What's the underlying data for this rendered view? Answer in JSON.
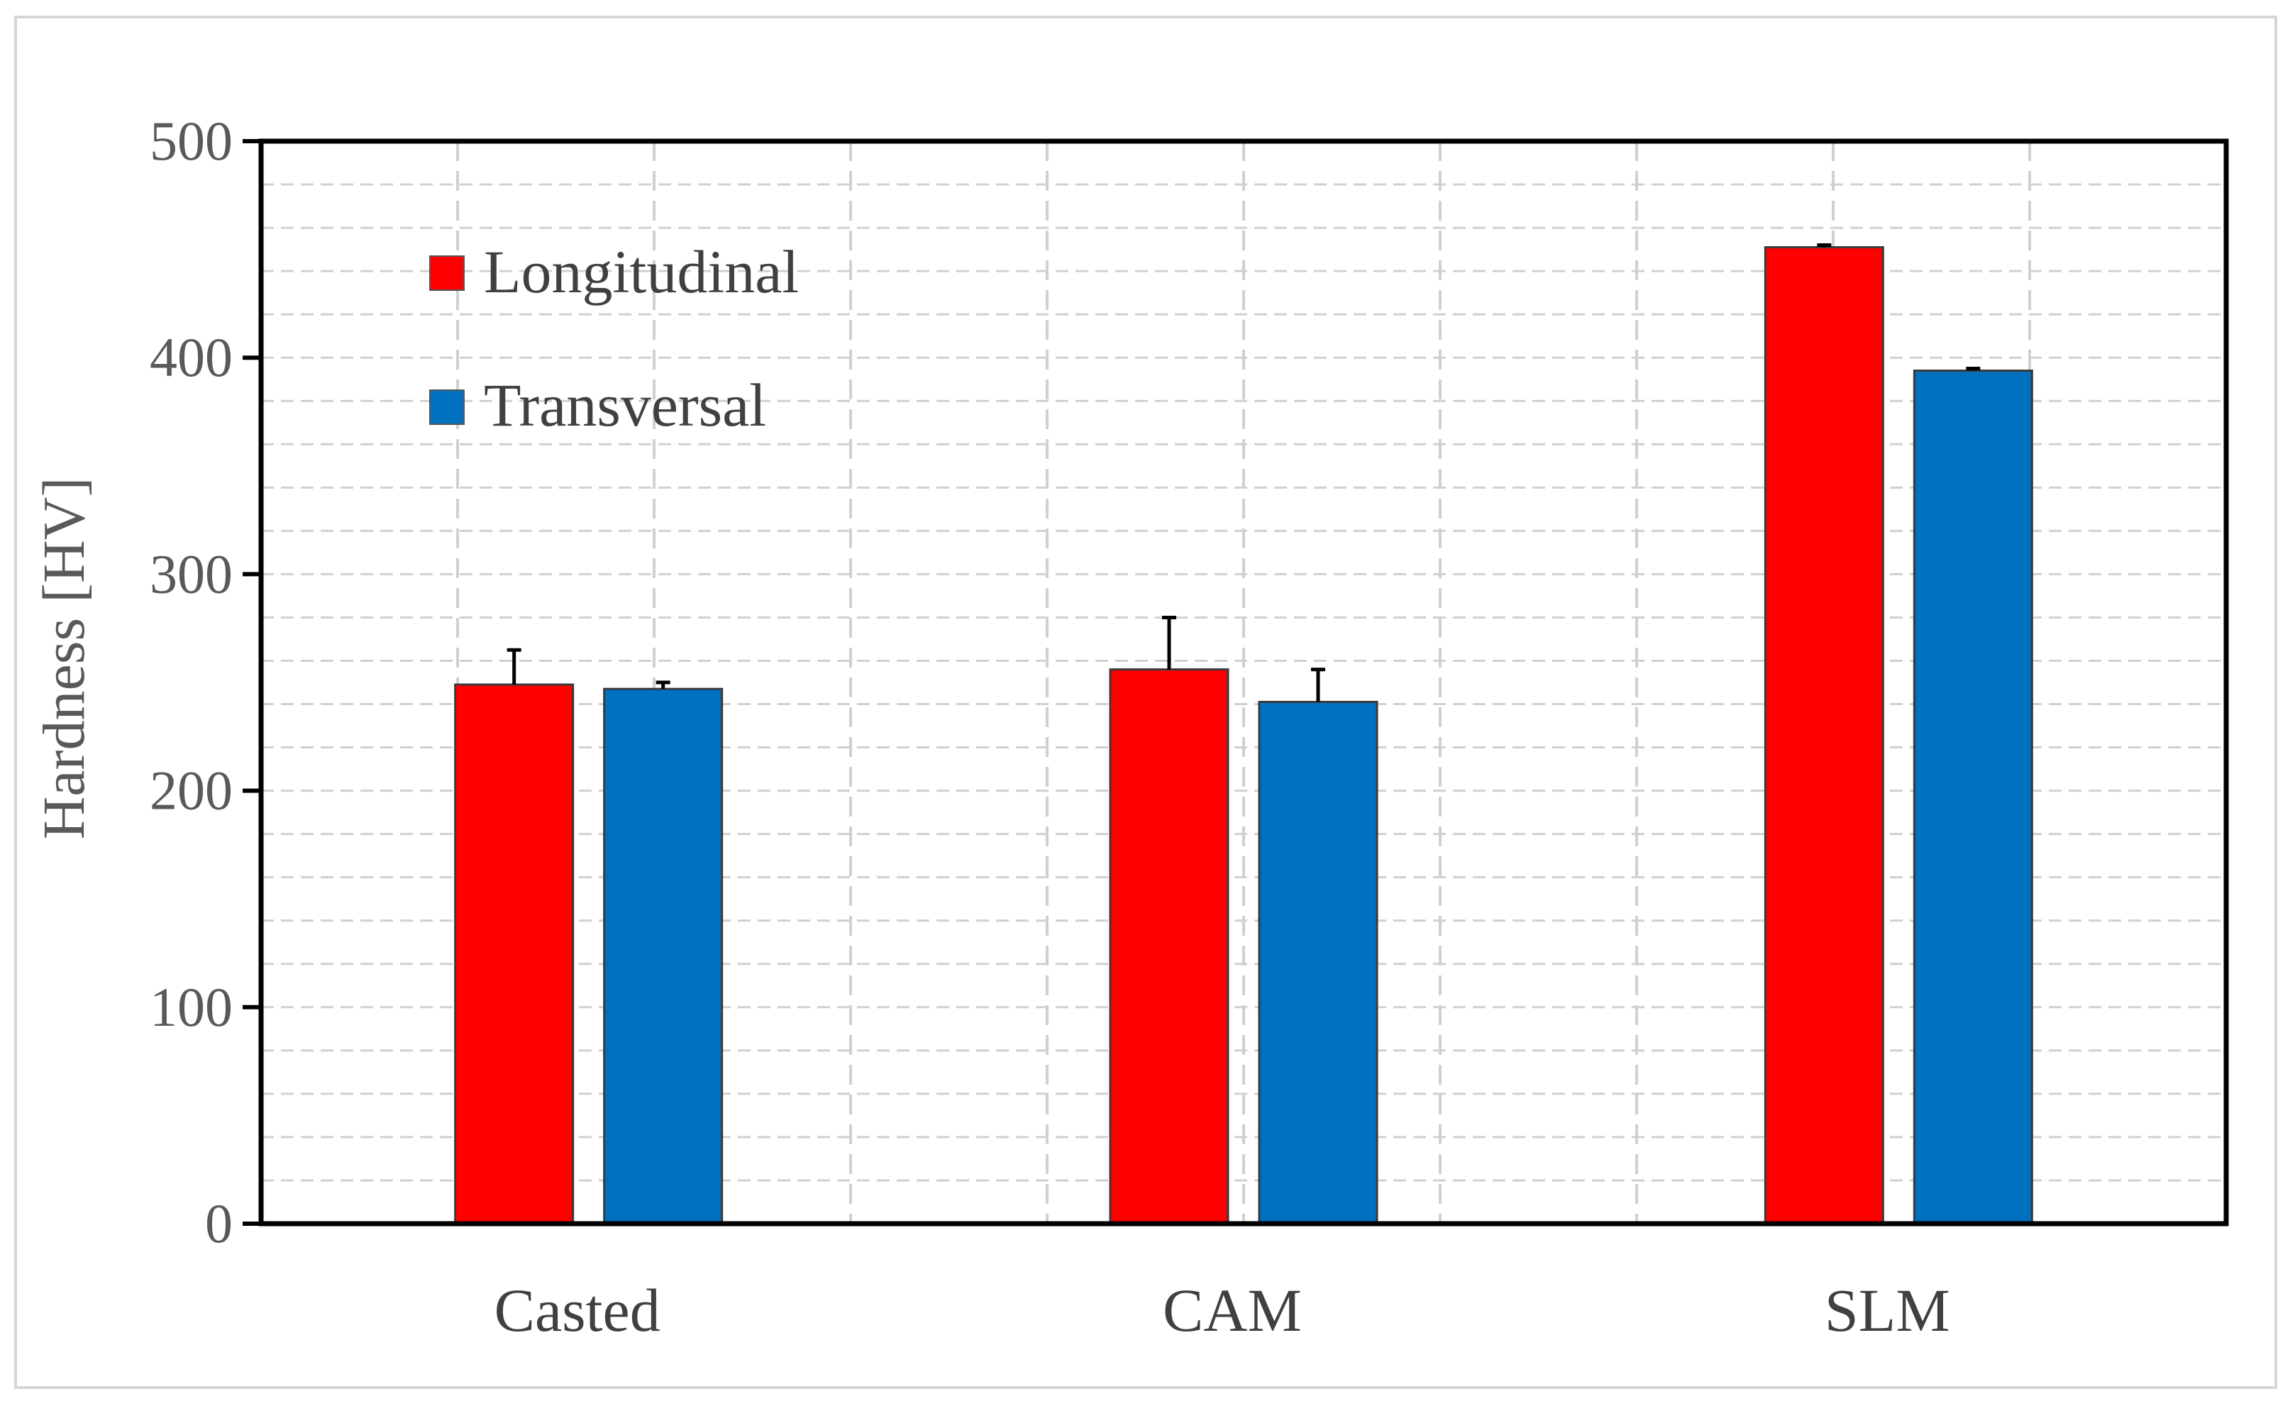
{
  "chart_data": {
    "type": "bar",
    "categories": [
      "Casted",
      "CAM",
      "SLM"
    ],
    "series": [
      {
        "name": "Longitudinal",
        "color": "#ff0000",
        "values": [
          249,
          256,
          451
        ],
        "errors": [
          16,
          24,
          1
        ]
      },
      {
        "name": "Transversal",
        "color": "#0070c0",
        "values": [
          247,
          241,
          394
        ],
        "errors": [
          3,
          15,
          1
        ]
      }
    ],
    "ylabel": "Hardness [HV]",
    "xlabel": "",
    "ylim": [
      0,
      500
    ],
    "yticks": [
      0,
      100,
      200,
      300,
      400,
      500
    ],
    "y_minor_step": 20,
    "grid": true,
    "legend_position": "top-left"
  }
}
